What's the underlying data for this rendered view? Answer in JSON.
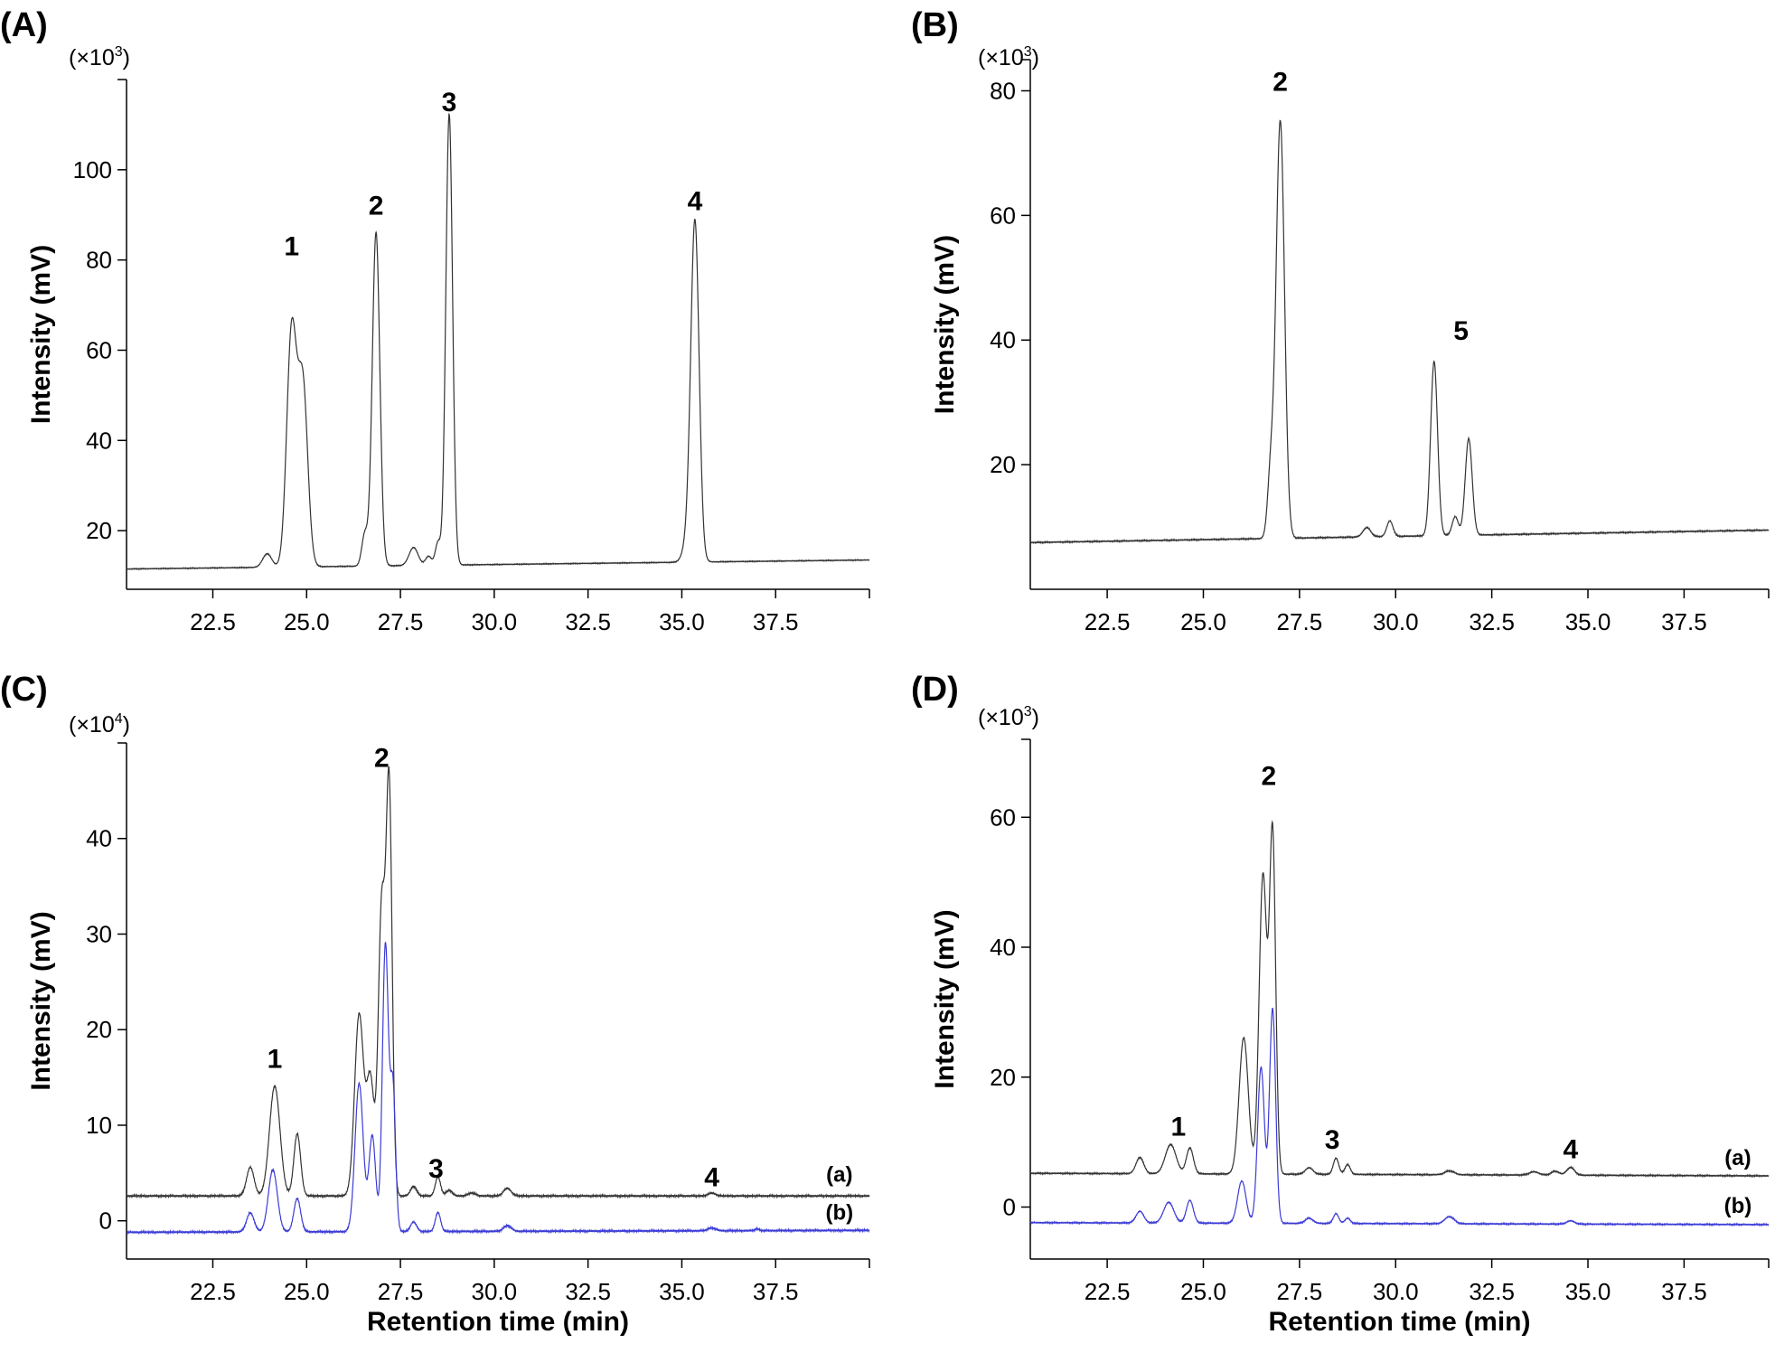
{
  "chart_data": [
    {
      "panel": "(A)",
      "type": "line",
      "y_multiplier": [
        "(×10",
        "3",
        ")"
      ],
      "ylabel": "Intensity (mV)",
      "xlabel": "",
      "xlim": [
        20.2,
        40.0
      ],
      "ylim": [
        7,
        120
      ],
      "x_ticks": [
        22.5,
        25.0,
        27.5,
        30.0,
        32.5,
        35.0,
        37.5
      ],
      "x_tick_labels": [
        "22.5",
        "25.0",
        "27.5",
        "30.0",
        "32.5",
        "35.0",
        "37.5"
      ],
      "y_ticks": [
        20,
        40,
        60,
        80,
        100
      ],
      "y_tick_labels": [
        "20",
        "40",
        "60",
        "80",
        "100"
      ],
      "baseline_start": 11.5,
      "baseline_end": 13.5,
      "series": [
        {
          "color": "#333333",
          "peaks": [
            {
              "x": 23.95,
              "h": 3,
              "w": 0.12
            },
            {
              "x": 24.6,
              "h": 52,
              "w": 0.13
            },
            {
              "x": 24.9,
              "h": 40,
              "w": 0.13
            },
            {
              "x": 26.55,
              "h": 7,
              "w": 0.08
            },
            {
              "x": 26.85,
              "h": 74,
              "w": 0.1
            },
            {
              "x": 27.85,
              "h": 4,
              "w": 0.12
            },
            {
              "x": 28.25,
              "h": 2,
              "w": 0.08
            },
            {
              "x": 28.5,
              "h": 5,
              "w": 0.07
            },
            {
              "x": 28.8,
              "h": 100,
              "w": 0.09
            },
            {
              "x": 35.15,
              "h": 4,
              "w": 0.12
            },
            {
              "x": 35.35,
              "h": 75,
              "w": 0.11
            }
          ]
        }
      ],
      "peak_labels": [
        {
          "text": "1",
          "x": 24.6,
          "y": 81
        },
        {
          "text": "2",
          "x": 26.85,
          "y": 90
        },
        {
          "text": "3",
          "x": 28.8,
          "y": 113
        },
        {
          "text": "4",
          "x": 35.35,
          "y": 91
        }
      ],
      "trace_labels": []
    },
    {
      "panel": "(B)",
      "type": "line",
      "y_multiplier": [
        "(×10",
        "3",
        ")"
      ],
      "ylabel": "Intensity (mV)",
      "xlabel": "",
      "xlim": [
        20.5,
        39.7
      ],
      "ylim": [
        0,
        85
      ],
      "x_ticks": [
        22.5,
        25.0,
        27.5,
        30.0,
        32.5,
        35.0,
        37.5
      ],
      "x_tick_labels": [
        "22.5",
        "25.0",
        "27.5",
        "30.0",
        "32.5",
        "35.0",
        "37.5"
      ],
      "y_ticks": [
        20,
        40,
        60,
        80
      ],
      "y_tick_labels": [
        "20",
        "40",
        "60",
        "80"
      ],
      "baseline_start": 7.5,
      "baseline_end": 9.5,
      "series": [
        {
          "color": "#333333",
          "peaks": [
            {
              "x": 26.75,
              "h": 10,
              "w": 0.08
            },
            {
              "x": 27.0,
              "h": 67,
              "w": 0.11
            },
            {
              "x": 29.25,
              "h": 1.5,
              "w": 0.1
            },
            {
              "x": 29.85,
              "h": 2.5,
              "w": 0.08
            },
            {
              "x": 31.0,
              "h": 28,
              "w": 0.09
            },
            {
              "x": 31.55,
              "h": 3,
              "w": 0.08
            },
            {
              "x": 31.9,
              "h": 15.5,
              "w": 0.09
            }
          ]
        }
      ],
      "peak_labels": [
        {
          "text": "2",
          "x": 27.0,
          "y": 80
        },
        {
          "text": "5",
          "x": 31.7,
          "y": 40
        }
      ],
      "trace_labels": []
    },
    {
      "panel": "(C)",
      "type": "line",
      "y_multiplier": [
        "(×10",
        "4",
        ")"
      ],
      "ylabel": "Intensity (mV)",
      "xlabel": "Retention time (min)",
      "xlim": [
        20.2,
        40.0
      ],
      "ylim": [
        -4,
        50
      ],
      "x_ticks": [
        22.5,
        25.0,
        27.5,
        30.0,
        32.5,
        35.0,
        37.5
      ],
      "x_tick_labels": [
        "22.5",
        "25.0",
        "27.5",
        "30.0",
        "32.5",
        "35.0",
        "37.5"
      ],
      "y_ticks": [
        0,
        10,
        20,
        30,
        40
      ],
      "y_tick_labels": [
        "0",
        "10",
        "20",
        "30",
        "40"
      ],
      "series": [
        {
          "name": "(a)",
          "color": "#333333",
          "baseline_start": 2.6,
          "baseline_end": 2.6,
          "peaks": [
            {
              "x": 23.5,
              "h": 3,
              "w": 0.1
            },
            {
              "x": 24.15,
              "h": 11.5,
              "w": 0.14
            },
            {
              "x": 24.75,
              "h": 6.5,
              "w": 0.09
            },
            {
              "x": 26.4,
              "h": 19,
              "w": 0.12
            },
            {
              "x": 26.7,
              "h": 12,
              "w": 0.1
            },
            {
              "x": 27.0,
              "h": 30,
              "w": 0.09
            },
            {
              "x": 27.2,
              "h": 42,
              "w": 0.08
            },
            {
              "x": 27.85,
              "h": 1,
              "w": 0.08
            },
            {
              "x": 28.5,
              "h": 2,
              "w": 0.07
            },
            {
              "x": 28.8,
              "h": 0.6,
              "w": 0.08
            },
            {
              "x": 29.4,
              "h": 0.3,
              "w": 0.1
            },
            {
              "x": 30.35,
              "h": 0.8,
              "w": 0.1
            },
            {
              "x": 35.8,
              "h": 0.3,
              "w": 0.1
            }
          ]
        },
        {
          "name": "(b)",
          "color": "#3b3bd6",
          "baseline_start": -1.2,
          "baseline_end": -1.0,
          "peaks": [
            {
              "x": 23.5,
              "h": 2,
              "w": 0.1
            },
            {
              "x": 24.1,
              "h": 6.5,
              "w": 0.12
            },
            {
              "x": 24.75,
              "h": 3.5,
              "w": 0.09
            },
            {
              "x": 26.4,
              "h": 15.5,
              "w": 0.11
            },
            {
              "x": 26.75,
              "h": 10,
              "w": 0.09
            },
            {
              "x": 27.1,
              "h": 30,
              "w": 0.08
            },
            {
              "x": 27.3,
              "h": 15,
              "w": 0.07
            },
            {
              "x": 27.85,
              "h": 1,
              "w": 0.08
            },
            {
              "x": 28.5,
              "h": 2,
              "w": 0.07
            },
            {
              "x": 30.35,
              "h": 0.6,
              "w": 0.1
            },
            {
              "x": 35.8,
              "h": 0.3,
              "w": 0.1
            },
            {
              "x": 37.0,
              "h": 0.2,
              "w": 0.05
            }
          ]
        }
      ],
      "peak_labels": [
        {
          "text": "1",
          "x": 24.15,
          "y": 16
        },
        {
          "text": "2",
          "x": 27.0,
          "y": 47.5
        },
        {
          "text": "3",
          "x": 28.45,
          "y": 4.5
        },
        {
          "text": "4",
          "x": 35.8,
          "y": 3.6
        }
      ],
      "trace_labels": [
        {
          "text": "(a)",
          "x": 39.2,
          "y": 4.1
        },
        {
          "text": "(b)",
          "x": 39.2,
          "y": 0.1
        }
      ]
    },
    {
      "panel": "(D)",
      "type": "line",
      "y_multiplier": [
        "(×10",
        "3",
        ")"
      ],
      "ylabel": "Intensity (mV)",
      "xlabel": "Retention time (min)",
      "xlim": [
        20.5,
        39.7
      ],
      "ylim": [
        -8,
        72
      ],
      "x_ticks": [
        22.5,
        25.0,
        27.5,
        30.0,
        32.5,
        35.0,
        37.5
      ],
      "x_tick_labels": [
        "22.5",
        "25.0",
        "27.5",
        "30.0",
        "32.5",
        "35.0",
        "37.5"
      ],
      "y_ticks": [
        0,
        20,
        40,
        60
      ],
      "y_tick_labels": [
        "0",
        "20",
        "40",
        "60"
      ],
      "series": [
        {
          "name": "(a)",
          "color": "#333333",
          "baseline_start": 5.2,
          "baseline_end": 4.8,
          "peaks": [
            {
              "x": 23.35,
              "h": 2.5,
              "w": 0.1
            },
            {
              "x": 24.15,
              "h": 4.5,
              "w": 0.14
            },
            {
              "x": 24.65,
              "h": 4,
              "w": 0.09
            },
            {
              "x": 26.05,
              "h": 21,
              "w": 0.12
            },
            {
              "x": 26.55,
              "h": 46,
              "w": 0.1
            },
            {
              "x": 26.8,
              "h": 52,
              "w": 0.08
            },
            {
              "x": 27.75,
              "h": 1,
              "w": 0.1
            },
            {
              "x": 28.45,
              "h": 2.5,
              "w": 0.07
            },
            {
              "x": 28.75,
              "h": 1.5,
              "w": 0.07
            },
            {
              "x": 31.4,
              "h": 0.6,
              "w": 0.12
            },
            {
              "x": 33.6,
              "h": 0.5,
              "w": 0.12
            },
            {
              "x": 34.15,
              "h": 0.6,
              "w": 0.1
            },
            {
              "x": 34.55,
              "h": 1.2,
              "w": 0.1
            }
          ]
        },
        {
          "name": "(b)",
          "color": "#3b3bd6",
          "baseline_start": -2.4,
          "baseline_end": -2.7,
          "peaks": [
            {
              "x": 23.35,
              "h": 1.8,
              "w": 0.1
            },
            {
              "x": 24.1,
              "h": 3.2,
              "w": 0.13
            },
            {
              "x": 24.65,
              "h": 3.5,
              "w": 0.09
            },
            {
              "x": 26.0,
              "h": 6.5,
              "w": 0.11
            },
            {
              "x": 26.5,
              "h": 24,
              "w": 0.09
            },
            {
              "x": 26.8,
              "h": 33,
              "w": 0.08
            },
            {
              "x": 27.75,
              "h": 0.8,
              "w": 0.1
            },
            {
              "x": 28.45,
              "h": 1.5,
              "w": 0.07
            },
            {
              "x": 28.75,
              "h": 0.8,
              "w": 0.07
            },
            {
              "x": 31.4,
              "h": 1.1,
              "w": 0.12
            },
            {
              "x": 34.55,
              "h": 0.5,
              "w": 0.1
            }
          ]
        }
      ],
      "peak_labels": [
        {
          "text": "1",
          "x": 24.35,
          "y": 11
        },
        {
          "text": "2",
          "x": 26.7,
          "y": 65
        },
        {
          "text": "3",
          "x": 28.35,
          "y": 9
        },
        {
          "text": "4",
          "x": 34.55,
          "y": 7.5
        }
      ],
      "trace_labels": [
        {
          "text": "(a)",
          "x": 38.9,
          "y": 6.5
        },
        {
          "text": "(b)",
          "x": 38.9,
          "y": -0.9
        }
      ]
    }
  ]
}
